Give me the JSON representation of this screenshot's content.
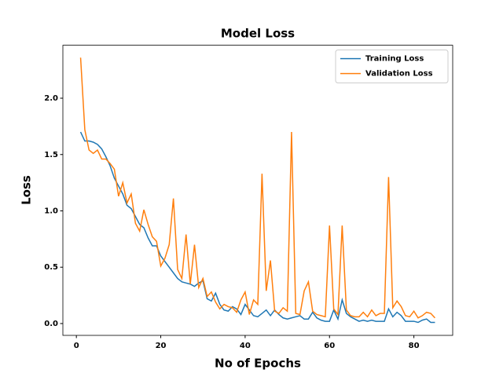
{
  "chart_data": {
    "type": "line",
    "title": "Model Loss",
    "xlabel": "No of Epochs",
    "ylabel": "Loss",
    "x": [
      1,
      2,
      3,
      4,
      5,
      6,
      7,
      8,
      9,
      10,
      11,
      12,
      13,
      14,
      15,
      16,
      17,
      18,
      19,
      20,
      21,
      22,
      23,
      24,
      25,
      26,
      27,
      28,
      29,
      30,
      31,
      32,
      33,
      34,
      35,
      36,
      37,
      38,
      39,
      40,
      41,
      42,
      43,
      44,
      45,
      46,
      47,
      48,
      49,
      50,
      51,
      52,
      53,
      54,
      55,
      56,
      57,
      58,
      59,
      60,
      61,
      62,
      63,
      64,
      65,
      66,
      67,
      68,
      69,
      70,
      71,
      72,
      73,
      74,
      75,
      76,
      77,
      78,
      79,
      80,
      81,
      82,
      83,
      84,
      85
    ],
    "series": [
      {
        "name": "Training Loss",
        "color": "#1f77b4",
        "values": [
          1.7,
          1.62,
          1.62,
          1.61,
          1.59,
          1.55,
          1.48,
          1.4,
          1.29,
          1.22,
          1.15,
          1.05,
          1.02,
          0.95,
          0.88,
          0.85,
          0.76,
          0.69,
          0.69,
          0.6,
          0.55,
          0.5,
          0.45,
          0.4,
          0.37,
          0.36,
          0.35,
          0.33,
          0.36,
          0.38,
          0.22,
          0.2,
          0.27,
          0.17,
          0.12,
          0.11,
          0.15,
          0.13,
          0.08,
          0.17,
          0.12,
          0.07,
          0.06,
          0.09,
          0.12,
          0.07,
          0.12,
          0.08,
          0.05,
          0.04,
          0.05,
          0.06,
          0.07,
          0.04,
          0.04,
          0.1,
          0.05,
          0.03,
          0.02,
          0.02,
          0.12,
          0.04,
          0.21,
          0.09,
          0.06,
          0.04,
          0.02,
          0.03,
          0.02,
          0.03,
          0.02,
          0.02,
          0.02,
          0.13,
          0.06,
          0.1,
          0.07,
          0.02,
          0.02,
          0.02,
          0.01,
          0.03,
          0.04,
          0.01,
          0.01
        ]
      },
      {
        "name": "Validation Loss",
        "color": "#ff7f0e",
        "values": [
          2.36,
          1.72,
          1.54,
          1.51,
          1.54,
          1.46,
          1.46,
          1.42,
          1.37,
          1.13,
          1.25,
          1.07,
          1.15,
          0.89,
          0.82,
          1.01,
          0.88,
          0.77,
          0.73,
          0.51,
          0.58,
          0.7,
          1.11,
          0.48,
          0.4,
          0.79,
          0.35,
          0.7,
          0.32,
          0.4,
          0.24,
          0.28,
          0.19,
          0.13,
          0.17,
          0.15,
          0.14,
          0.1,
          0.21,
          0.28,
          0.08,
          0.21,
          0.17,
          1.33,
          0.29,
          0.56,
          0.11,
          0.09,
          0.14,
          0.11,
          1.7,
          0.09,
          0.08,
          0.29,
          0.37,
          0.11,
          0.08,
          0.07,
          0.06,
          0.87,
          0.13,
          0.08,
          0.87,
          0.12,
          0.07,
          0.06,
          0.06,
          0.1,
          0.06,
          0.12,
          0.07,
          0.09,
          0.09,
          1.3,
          0.14,
          0.2,
          0.15,
          0.07,
          0.06,
          0.11,
          0.05,
          0.07,
          0.1,
          0.09,
          0.05
        ]
      }
    ],
    "xlim": [
      -3.2,
      89.2
    ],
    "xticks": [
      0,
      20,
      40,
      60,
      80
    ],
    "ylim": [
      -0.105,
      2.47
    ],
    "yticks": [
      {
        "value": 0,
        "label": "0.0"
      },
      {
        "value": 0.5,
        "label": "0.5"
      },
      {
        "value": 1,
        "label": "1.0"
      },
      {
        "value": 1.5,
        "label": "1.5"
      },
      {
        "value": 2,
        "label": "2.0"
      }
    ],
    "legend": "upper right"
  }
}
